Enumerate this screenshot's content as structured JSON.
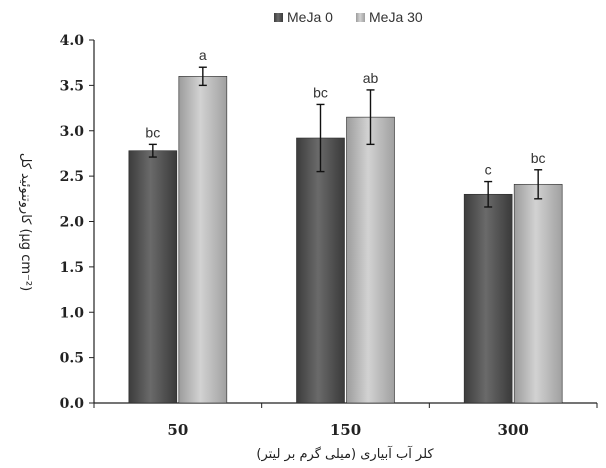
{
  "chart_data": {
    "type": "bar",
    "categories": [
      "50",
      "150",
      "300"
    ],
    "series": [
      {
        "name": "MeJa 0",
        "values": [
          2.78,
          2.92,
          2.3
        ],
        "errors": [
          0.07,
          0.37,
          0.14
        ],
        "labels": [
          "bc",
          "bc",
          "c"
        ],
        "color": "#555555"
      },
      {
        "name": "MeJa 30",
        "values": [
          3.6,
          3.15,
          2.41
        ],
        "errors": [
          0.1,
          0.3,
          0.16
        ],
        "labels": [
          "a",
          "ab",
          "bc"
        ],
        "color": "#b2b2b2"
      }
    ],
    "ylim": [
      0,
      4
    ],
    "yticks": [
      "0.0",
      "0.5",
      "1.0",
      "1.5",
      "2.0",
      "2.5",
      "3.0",
      "3.5",
      "4.0"
    ],
    "xlabel": "کلر آب آبیاری (میلی گرم بر لیتر)",
    "ylabel": "کاروتنوئید کل (µg cm⁻²)",
    "legend_position": "top"
  }
}
